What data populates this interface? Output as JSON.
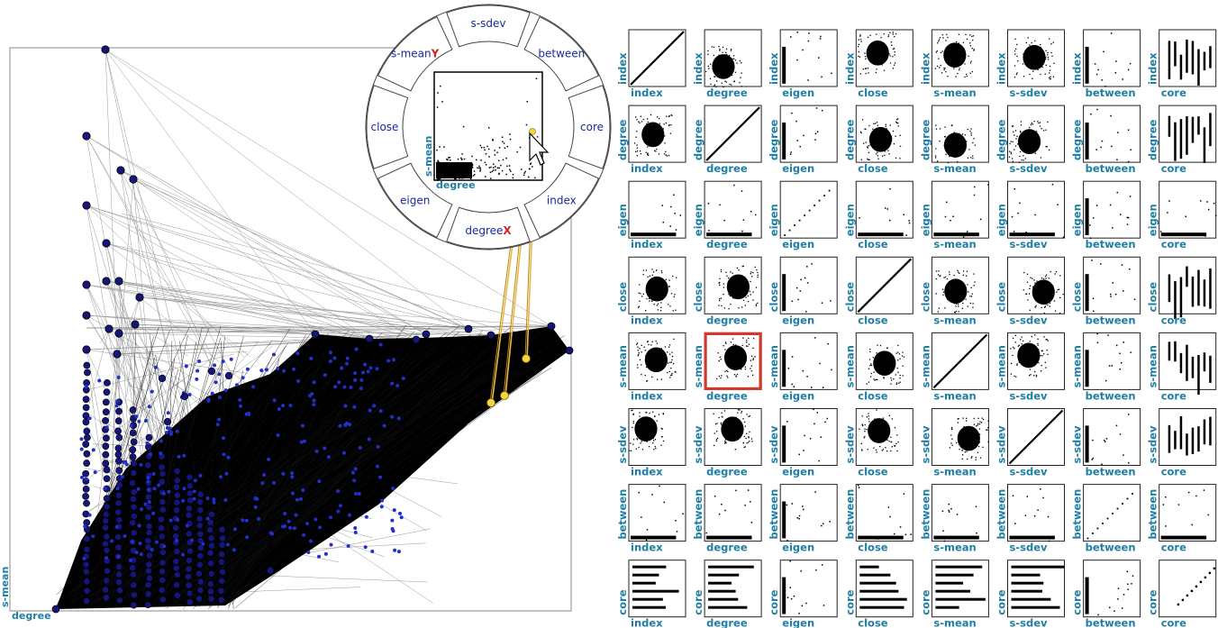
{
  "attributes": [
    "index",
    "degree",
    "eigen",
    "close",
    "s-mean",
    "s-sdev",
    "between",
    "core"
  ],
  "main_plot": {
    "x_label": "degree",
    "y_label": "s-mean"
  },
  "wheel": {
    "segments": [
      "s-sdev",
      "between",
      "core",
      "index",
      "degreeX",
      "eigen",
      "close",
      "s-meanY"
    ],
    "segment_base_labels": [
      "s-sdev",
      "between",
      "core",
      "index",
      "degree",
      "eigen",
      "close",
      "s-mean"
    ],
    "x_marker": "X",
    "y_marker": "Y",
    "preview_x_label": "degree",
    "preview_y_label": "s-mean",
    "marker_color": "#d42020"
  },
  "matrix": {
    "selected_row": "s-mean",
    "selected_col": "degree",
    "highlight_color": "#d03a2e",
    "label_color": "#1d7fa5"
  },
  "colors": {
    "node_fill": "#15157a",
    "node_fill_light": "#2030c8",
    "highlight_node": "#f2d640",
    "highlight_line": "#e8b94a"
  }
}
